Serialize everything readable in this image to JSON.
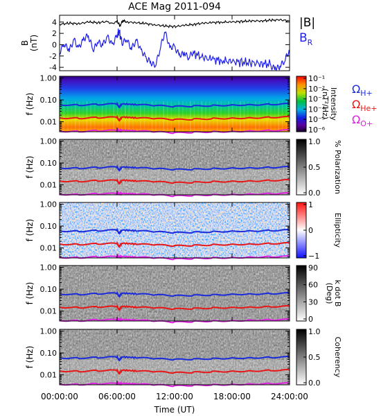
{
  "chart_data": {
    "type": "spectrogram",
    "title": "ACE Mag 2011-094",
    "xlabel": "Time (UT)",
    "x_ticks": [
      "00:00:00",
      "06:00:00",
      "12:00:00",
      "18:00:00",
      "24:00:00"
    ],
    "x_hours": [
      0,
      6,
      12,
      18,
      24
    ],
    "xlim_hours": [
      0,
      24
    ],
    "colors": {
      "total": "#000000",
      "br": "#1e1ee6",
      "h": "#1b2bdc",
      "he": "#e81616",
      "o": "#e020e0"
    },
    "panels": [
      {
        "id": "field",
        "ylabel": "B (nT)",
        "ylabel_top": "B",
        "ylabel_bottom": "(nT)",
        "ylim": [
          -4.6,
          5.2
        ],
        "y_ticks": [
          "4",
          "2",
          "0",
          "-2",
          "-4"
        ],
        "y_tick_values": [
          4,
          2,
          0,
          -2,
          -4
        ],
        "legend": [
          {
            "label": "|B|",
            "color": "#000000"
          },
          {
            "label": "B",
            "subscript": "R",
            "color": "#1e1ee6"
          }
        ],
        "series": [
          {
            "name": "|B|",
            "x_hours": [
              0,
              1,
              2,
              3,
              4,
              5,
              5.5,
              6,
              6.3,
              6.6,
              7,
              8,
              9,
              10,
              11,
              12,
              13,
              14,
              15,
              16,
              17,
              18,
              19,
              20,
              21,
              22,
              23,
              24
            ],
            "y": [
              3.6,
              3.8,
              3.7,
              4.0,
              3.9,
              4.1,
              3.8,
              4.2,
              3.3,
              4.3,
              4.0,
              3.9,
              3.7,
              3.5,
              3.3,
              3.2,
              3.4,
              3.6,
              3.8,
              3.9,
              4.0,
              4.0,
              4.1,
              4.2,
              4.2,
              4.3,
              4.4,
              4.2
            ]
          },
          {
            "name": "B_R",
            "x_hours": [
              0,
              0.5,
              1,
              1.5,
              2,
              2.5,
              3,
              3.5,
              4,
              4.5,
              5,
              5.5,
              6,
              6.2,
              6.5,
              7,
              7.5,
              8,
              8.5,
              9,
              9.5,
              10,
              10.5,
              11,
              11.5,
              12,
              12.5,
              13,
              13.5,
              14,
              15,
              16,
              17,
              18,
              19,
              20,
              21,
              22,
              22.5,
              23,
              23.5,
              24
            ],
            "y": [
              -1.5,
              0.5,
              -0.5,
              1.0,
              -1.0,
              0.5,
              1.5,
              -0.5,
              1.0,
              0.0,
              1.0,
              -0.5,
              1.5,
              2.5,
              0.5,
              1.5,
              -0.5,
              0.5,
              -1.5,
              -2.5,
              -2.8,
              -3.2,
              -0.5,
              2.0,
              -1.0,
              -0.5,
              -1.5,
              -1.0,
              -2.2,
              -1.5,
              -2.3,
              -2.6,
              -2.8,
              -3.0,
              -3.1,
              -3.2,
              -3.3,
              -3.5,
              -3.7,
              -3.6,
              -3.0,
              -1.5
            ]
          }
        ]
      },
      {
        "id": "intensity",
        "ylabel": "f (Hz)",
        "ylim_hz": [
          0.0035,
          1.2
        ],
        "log_y": true,
        "y_ticks": [
          "1.00",
          "0.10",
          "0.01"
        ],
        "y_tick_values": [
          1.0,
          0.1,
          0.01
        ],
        "colorbar": {
          "label": "Intensity (nT²/Hz)",
          "label_top": "Intensity",
          "label_bottom": "(nT²/Hz)",
          "ticks": [
            "10⁻¹",
            "10⁻²",
            "10⁻³",
            "10⁻⁴",
            "10⁻⁵",
            "10⁻⁶"
          ],
          "colormap": "rainbow",
          "log": true
        },
        "legend": [
          {
            "label": "Ω",
            "subscript": "H+",
            "color": "#1b2bdc"
          },
          {
            "label": "Ω",
            "subscript": "He+",
            "color": "#e81616"
          },
          {
            "label": "Ω",
            "subscript": "O+",
            "color": "#e020e0"
          }
        ]
      },
      {
        "id": "polarization",
        "ylabel": "f (Hz)",
        "ylim_hz": [
          0.0035,
          1.2
        ],
        "log_y": true,
        "y_ticks": [
          "1.00",
          "0.10",
          "0.01"
        ],
        "y_tick_values": [
          1.0,
          0.1,
          0.01
        ],
        "colorbar": {
          "label": "% Polarization",
          "ticks": [
            "1.0",
            "0.5",
            "0.0"
          ],
          "colormap": "gray"
        }
      },
      {
        "id": "ellipticity",
        "ylabel": "f (Hz)",
        "ylim_hz": [
          0.0035,
          1.2
        ],
        "log_y": true,
        "y_ticks": [
          "1.00",
          "0.10",
          "0.01"
        ],
        "y_tick_values": [
          1.0,
          0.1,
          0.01
        ],
        "colorbar": {
          "label": "Ellipticity",
          "ticks": [
            "1",
            "0",
            "−1"
          ],
          "colormap": "bwr"
        }
      },
      {
        "id": "kdotb",
        "ylabel": "f (Hz)",
        "ylim_hz": [
          0.0035,
          1.2
        ],
        "log_y": true,
        "y_ticks": [
          "1.00",
          "0.10",
          "0.01"
        ],
        "y_tick_values": [
          1.0,
          0.1,
          0.01
        ],
        "colorbar": {
          "label": "k dot B (Deg)",
          "label_top": "k dot B",
          "label_bottom": "(Deg)",
          "ticks": [
            "90",
            "60",
            "30",
            "0"
          ],
          "colormap": "gray"
        }
      },
      {
        "id": "coherency",
        "ylabel": "f (Hz)",
        "ylim_hz": [
          0.0035,
          1.2
        ],
        "log_y": true,
        "y_ticks": [
          "1.00",
          "0.10",
          "0.01"
        ],
        "y_tick_values": [
          1.0,
          0.1,
          0.01
        ],
        "colorbar": {
          "label": "Coherency",
          "ticks": [
            "1.0",
            "0.5",
            "0.0"
          ],
          "colormap": "gray"
        }
      }
    ],
    "gyrofrequency_hz": {
      "x_hours": [
        0,
        2,
        4,
        6,
        6.2,
        6.5,
        8,
        10,
        12,
        14,
        16,
        18,
        20,
        22,
        24
      ],
      "H+": [
        0.06,
        0.058,
        0.062,
        0.065,
        0.045,
        0.066,
        0.061,
        0.055,
        0.05,
        0.052,
        0.055,
        0.058,
        0.06,
        0.063,
        0.066
      ],
      "He+": [
        0.015,
        0.0145,
        0.0155,
        0.016,
        0.011,
        0.0165,
        0.015,
        0.014,
        0.0125,
        0.013,
        0.014,
        0.0145,
        0.015,
        0.016,
        0.0165
      ],
      "O+": [
        0.0037,
        0.0036,
        0.0039,
        0.004,
        0.0038,
        0.0041,
        0.0038,
        0.0035,
        0.0031,
        0.0033,
        0.0035,
        0.0036,
        0.0038,
        0.004,
        0.0041
      ]
    }
  }
}
